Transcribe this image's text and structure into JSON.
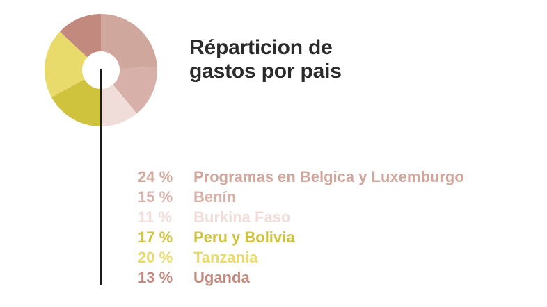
{
  "title_line1": "Réparticion de",
  "title_line2": "gastos por pais",
  "chart_data": {
    "type": "pie",
    "title": "Réparticion de gastos por pais",
    "categories": [
      "Programas en Belgica y Luxemburgo",
      "Benín",
      "Burkina Faso",
      "Peru y Bolivia",
      "Tanzania",
      "Uganda"
    ],
    "values": [
      24,
      15,
      11,
      17,
      20,
      13
    ],
    "percent_labels": [
      "24 %",
      "15 %",
      "11 %",
      "17 %",
      "20 %",
      "13 %"
    ],
    "colors": [
      "#d0a79c",
      "#d7b1a9",
      "#f0dcd8",
      "#cfc23d",
      "#e8db6b",
      "#c28a7f"
    ],
    "legend_placement": "bottom"
  }
}
